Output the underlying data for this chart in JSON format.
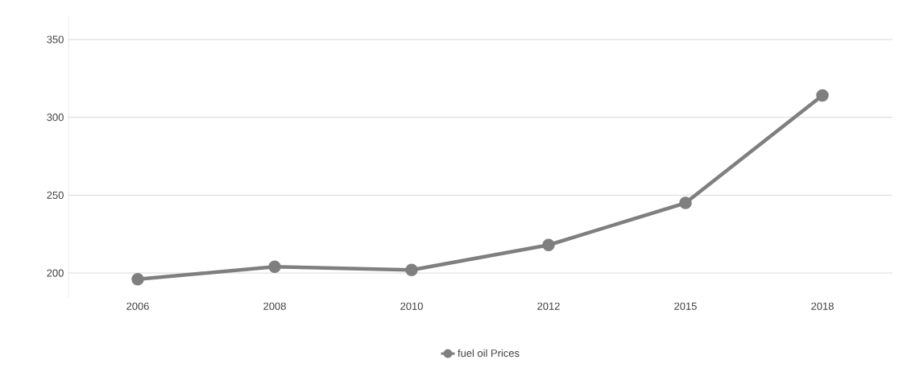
{
  "chart_data": {
    "type": "line",
    "categories": [
      "2006",
      "2008",
      "2010",
      "2012",
      "2015",
      "2018"
    ],
    "series": [
      {
        "name": "fuel oil Prices",
        "color": "#7f7f7f",
        "values": [
          196,
          204,
          202,
          218,
          245,
          314
        ]
      }
    ],
    "ylim": [
      184,
      365
    ],
    "yticks": [
      200,
      250,
      300,
      350
    ],
    "grid": "y",
    "legend": "bottom",
    "marker": "circle",
    "line_style": "solid"
  }
}
